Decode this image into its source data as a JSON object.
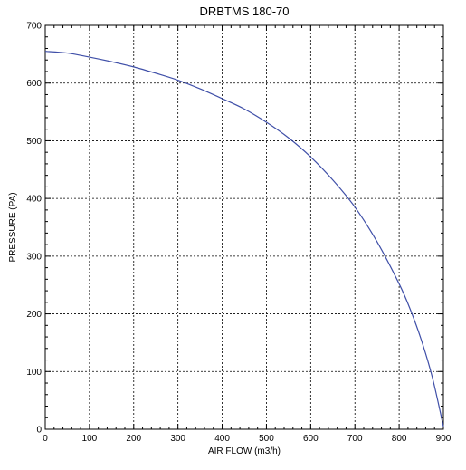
{
  "chart_data": {
    "type": "line",
    "title": "DRBTMS 180-70",
    "xlabel": "AIR FLOW (m3/h)",
    "ylabel": "PRESSURE (PA)",
    "xlim": [
      0,
      900
    ],
    "ylim": [
      0,
      700
    ],
    "x_ticks": [
      "0",
      "100",
      "200",
      "300",
      "400",
      "500",
      "600",
      "700",
      "800",
      "900"
    ],
    "y_ticks": [
      "0",
      "100",
      "200",
      "300",
      "400",
      "500",
      "600",
      "700"
    ],
    "grid": true,
    "grid_style": "dotted",
    "series": [
      {
        "color": "#3f4fa8",
        "points": [
          [
            0,
            655
          ],
          [
            50,
            652
          ],
          [
            100,
            645
          ],
          [
            150,
            637
          ],
          [
            200,
            628
          ],
          [
            250,
            617
          ],
          [
            300,
            605
          ],
          [
            350,
            590
          ],
          [
            400,
            573
          ],
          [
            450,
            555
          ],
          [
            500,
            532
          ],
          [
            550,
            505
          ],
          [
            600,
            472
          ],
          [
            650,
            432
          ],
          [
            700,
            385
          ],
          [
            750,
            325
          ],
          [
            800,
            252
          ],
          [
            825,
            208
          ],
          [
            850,
            155
          ],
          [
            875,
            90
          ],
          [
            900,
            5
          ]
        ]
      }
    ]
  }
}
